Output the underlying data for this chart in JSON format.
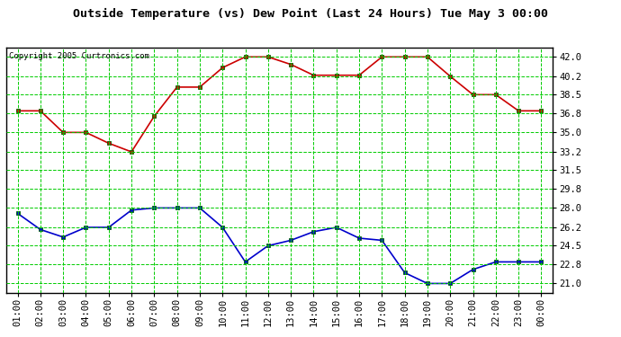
{
  "title": "Outside Temperature (vs) Dew Point (Last 24 Hours) Tue May 3 00:00",
  "copyright": "Copyright 2005 Curtronics.com",
  "x_labels": [
    "01:00",
    "02:00",
    "03:00",
    "04:00",
    "05:00",
    "06:00",
    "07:00",
    "08:00",
    "09:00",
    "10:00",
    "11:00",
    "12:00",
    "13:00",
    "14:00",
    "15:00",
    "16:00",
    "17:00",
    "18:00",
    "19:00",
    "20:00",
    "21:00",
    "22:00",
    "23:00",
    "00:00"
  ],
  "temp_values": [
    37.0,
    37.0,
    35.0,
    35.0,
    34.0,
    33.2,
    36.5,
    39.2,
    39.2,
    41.0,
    42.0,
    42.0,
    41.3,
    40.3,
    40.3,
    40.3,
    42.0,
    42.0,
    42.0,
    40.2,
    38.5,
    38.5,
    37.0,
    37.0
  ],
  "dew_values": [
    27.5,
    26.0,
    25.3,
    26.2,
    26.2,
    27.8,
    28.0,
    28.0,
    28.0,
    26.2,
    23.0,
    24.5,
    25.0,
    25.8,
    26.2,
    25.2,
    25.0,
    22.0,
    21.0,
    21.0,
    22.3,
    23.0,
    23.0,
    23.0
  ],
  "temp_color": "#cc0000",
  "dew_color": "#0000cc",
  "grid_color": "#00cc00",
  "bg_color": "#ffffff",
  "plot_bg_color": "#ffffff",
  "title_color": "#000000",
  "yticks": [
    21.0,
    22.8,
    24.5,
    26.2,
    28.0,
    29.8,
    31.5,
    33.2,
    35.0,
    36.8,
    38.5,
    40.2,
    42.0
  ],
  "ymin": 20.1,
  "ymax": 42.9,
  "title_fontsize": 9.5,
  "copyright_fontsize": 6.5,
  "tick_fontsize": 7.5,
  "marker_size": 3.0,
  "line_width": 1.2
}
